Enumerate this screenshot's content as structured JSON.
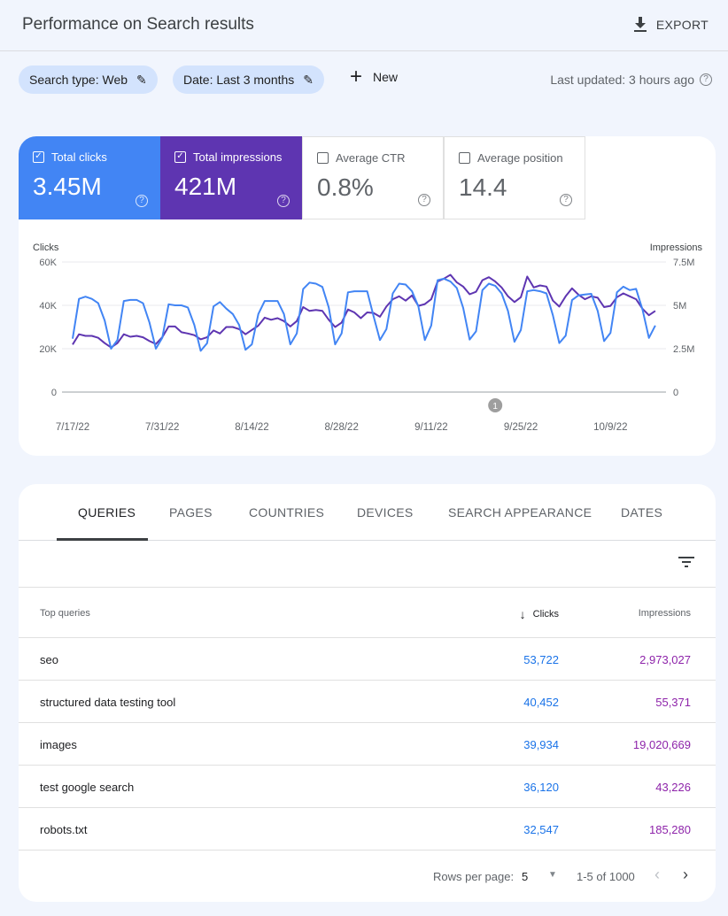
{
  "header": {
    "title": "Performance on Search results",
    "export_label": "EXPORT"
  },
  "filters": {
    "chips": [
      {
        "label": "Search type: Web"
      },
      {
        "label": "Date: Last 3 months"
      }
    ],
    "new_label": "New",
    "last_updated": "Last updated: 3 hours ago"
  },
  "metrics": [
    {
      "label": "Total clicks",
      "value": "3.45M",
      "checked": true,
      "color": "#4285f4"
    },
    {
      "label": "Total impressions",
      "value": "421M",
      "checked": true,
      "color": "#5e35b1"
    },
    {
      "label": "Average CTR",
      "value": "0.8%",
      "checked": false
    },
    {
      "label": "Average position",
      "value": "14.4",
      "checked": false
    }
  ],
  "chart_data": {
    "type": "line",
    "left_axis_label": "Clicks",
    "right_axis_label": "Impressions",
    "left_ticks": [
      "0",
      "20K",
      "40K",
      "60K"
    ],
    "right_ticks": [
      "0",
      "2.5M",
      "5M",
      "7.5M"
    ],
    "left_ylim": [
      0,
      60000
    ],
    "right_ylim": [
      0,
      7500000
    ],
    "x_tick_labels": [
      "7/17/22",
      "7/31/22",
      "8/14/22",
      "8/28/22",
      "9/11/22",
      "9/25/22",
      "10/9/22"
    ],
    "x_tick_dates": [
      "2022-07-17",
      "2022-07-31",
      "2022-08-14",
      "2022-08-28",
      "2022-09-11",
      "2022-09-25",
      "2022-10-09"
    ],
    "x_start": "2022-07-17",
    "x_end": "2022-10-16",
    "annotation": {
      "date": "2022-09-21",
      "label": "1"
    },
    "grid": true,
    "series": [
      {
        "name": "Clicks",
        "axis": "left",
        "color": "#4285f4",
        "values": [
          24600,
          43000,
          44000,
          43000,
          41000,
          33000,
          20000,
          24000,
          42000,
          42500,
          42500,
          41000,
          32000,
          20000,
          25000,
          40500,
          40000,
          40000,
          39000,
          31000,
          19000,
          22500,
          39500,
          41500,
          38500,
          36000,
          31000,
          19500,
          22000,
          36000,
          42000,
          42000,
          42000,
          36000,
          22000,
          27000,
          47500,
          50500,
          50000,
          48500,
          39000,
          22000,
          27000,
          46000,
          46500,
          46500,
          46500,
          35000,
          24000,
          29000,
          45500,
          50000,
          49600,
          46500,
          39500,
          24000,
          30700,
          51600,
          52300,
          51000,
          48000,
          38800,
          24200,
          28000,
          47000,
          50000,
          49000,
          45500,
          37400,
          23200,
          28600,
          46500,
          47000,
          46500,
          45500,
          35400,
          22600,
          26000,
          42400,
          44600,
          45000,
          45300,
          37400,
          23500,
          27300,
          46000,
          48600,
          47000,
          47600,
          38000,
          25000,
          30700
        ]
      },
      {
        "name": "Impressions",
        "axis": "right",
        "color": "#5e35b1",
        "values": [
          2740000,
          3330000,
          3240000,
          3240000,
          3130000,
          2820000,
          2570000,
          2820000,
          3330000,
          3190000,
          3240000,
          3160000,
          2940000,
          2770000,
          3160000,
          3780000,
          3780000,
          3450000,
          3380000,
          3280000,
          3040000,
          3160000,
          3550000,
          3380000,
          3750000,
          3750000,
          3630000,
          3330000,
          3580000,
          3830000,
          4290000,
          4170000,
          4260000,
          4090000,
          3780000,
          4090000,
          4900000,
          4680000,
          4730000,
          4680000,
          4170000,
          3750000,
          4000000,
          4760000,
          4590000,
          4260000,
          4590000,
          4560000,
          4340000,
          4930000,
          5350000,
          5520000,
          5270000,
          5570000,
          4970000,
          5070000,
          5350000,
          6370000,
          6540000,
          6760000,
          6320000,
          6080000,
          5640000,
          5780000,
          6450000,
          6620000,
          6370000,
          6030000,
          5520000,
          5190000,
          5470000,
          6660000,
          6030000,
          6150000,
          6080000,
          5270000,
          4930000,
          5520000,
          5980000,
          5610000,
          5350000,
          5520000,
          5440000,
          4900000,
          4970000,
          5470000,
          5690000,
          5520000,
          5350000,
          4800000,
          4430000,
          4680000
        ]
      }
    ]
  },
  "table": {
    "tabs": [
      "QUERIES",
      "PAGES",
      "COUNTRIES",
      "DEVICES",
      "SEARCH APPEARANCE",
      "DATES"
    ],
    "active_tab": "QUERIES",
    "columns": {
      "query": "Top queries",
      "clicks": "Clicks",
      "impressions": "Impressions"
    },
    "sort": "clicks-desc",
    "rows": [
      {
        "query": "seo",
        "clicks": "53,722",
        "impressions": "2,973,027"
      },
      {
        "query": "structured data testing tool",
        "clicks": "40,452",
        "impressions": "55,371"
      },
      {
        "query": "images",
        "clicks": "39,934",
        "impressions": "19,020,669"
      },
      {
        "query": "test google search",
        "clicks": "36,120",
        "impressions": "43,226"
      },
      {
        "query": "robots.txt",
        "clicks": "32,547",
        "impressions": "185,280"
      }
    ],
    "footer": {
      "rows_per_page_label": "Rows per page:",
      "rows_per_page": "5",
      "range": "1-5 of 1000"
    }
  }
}
